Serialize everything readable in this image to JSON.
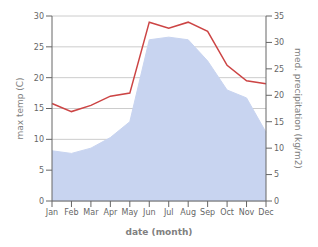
{
  "chart_data": {
    "type": "combo",
    "categories": [
      "Jan",
      "Feb",
      "Mar",
      "Apr",
      "May",
      "Jun",
      "Jul",
      "Aug",
      "Sep",
      "Oct",
      "Nov",
      "Dec"
    ],
    "series": [
      {
        "type": "area",
        "axis": "y2",
        "color": "#c8d4f0",
        "values": [
          9.5,
          9.0,
          10.0,
          12.0,
          15.0,
          30.5,
          31.0,
          30.5,
          26.5,
          21.0,
          19.5,
          13.0
        ]
      },
      {
        "type": "line",
        "color": "#cc4444",
        "values": [
          15.8,
          14.5,
          15.5,
          17.0,
          17.5,
          29.0,
          28.0,
          29.0,
          27.5,
          22.0,
          19.5,
          19.0
        ]
      }
    ],
    "xlabel": "date (month)",
    "ylabel": "max temp (C)",
    "y2label": "med. precipitation (kg/m2)",
    "ylim": [
      0,
      30
    ],
    "yticks": [
      0,
      5,
      10,
      15,
      20,
      25,
      30
    ],
    "y2lim": [
      0,
      35
    ],
    "y2ticks": [
      0,
      5,
      10,
      15,
      20,
      25,
      30,
      35
    ],
    "grid": true
  }
}
